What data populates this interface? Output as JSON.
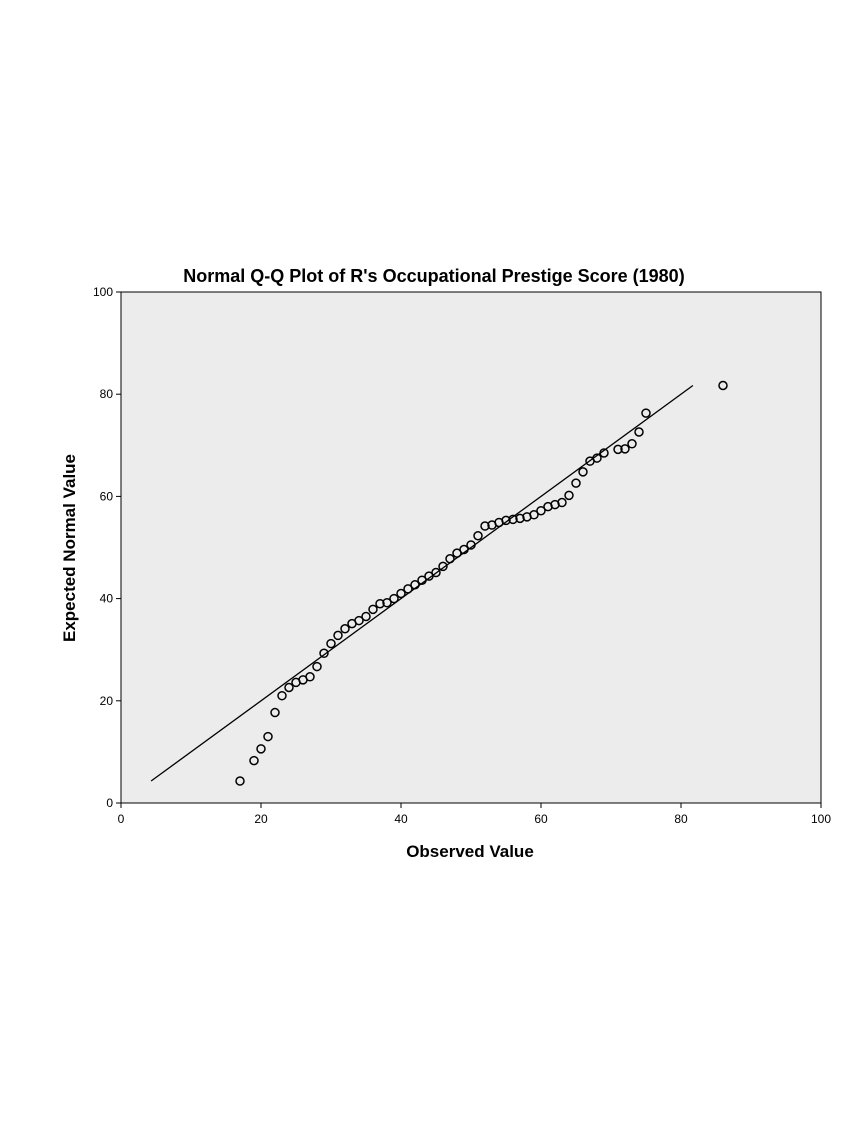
{
  "chart_data": {
    "type": "scatter",
    "title": "Normal Q-Q Plot of R's Occupational Prestige Score (1980)",
    "xlabel": "Observed Value",
    "ylabel": "Expected Normal Value",
    "xlim": [
      0,
      100
    ],
    "ylim": [
      0,
      100
    ],
    "xticks": [
      "0",
      "20",
      "40",
      "60",
      "80",
      "100"
    ],
    "yticks": [
      "0",
      "20",
      "40",
      "60",
      "80",
      "100"
    ],
    "grid": false,
    "legend": "none",
    "plot_background": "#ececec",
    "reference_line": {
      "x": [
        4.3,
        81.7
      ],
      "y": [
        4.3,
        81.7
      ]
    },
    "series": [
      {
        "marker": "open-circle",
        "points": [
          [
            17,
            4.3
          ],
          [
            19,
            8.3
          ],
          [
            20,
            10.6
          ],
          [
            21,
            13.0
          ],
          [
            22,
            17.7
          ],
          [
            23,
            21.0
          ],
          [
            24,
            22.6
          ],
          [
            25,
            23.6
          ],
          [
            26,
            24.1
          ],
          [
            27,
            24.7
          ],
          [
            28,
            26.7
          ],
          [
            29,
            29.3
          ],
          [
            30,
            31.2
          ],
          [
            31,
            32.8
          ],
          [
            32,
            34.1
          ],
          [
            33,
            35.1
          ],
          [
            34,
            35.7
          ],
          [
            35,
            36.5
          ],
          [
            36,
            37.9
          ],
          [
            37,
            39.0
          ],
          [
            38,
            39.2
          ],
          [
            39,
            40.0
          ],
          [
            40,
            41.0
          ],
          [
            41,
            41.9
          ],
          [
            42,
            42.7
          ],
          [
            43,
            43.6
          ],
          [
            44,
            44.4
          ],
          [
            45,
            45.1
          ],
          [
            46,
            46.3
          ],
          [
            47,
            47.8
          ],
          [
            48,
            48.9
          ],
          [
            49,
            49.6
          ],
          [
            50,
            50.5
          ],
          [
            51,
            52.3
          ],
          [
            52,
            54.2
          ],
          [
            53,
            54.4
          ],
          [
            54,
            54.9
          ],
          [
            55,
            55.3
          ],
          [
            56,
            55.5
          ],
          [
            57,
            55.7
          ],
          [
            58,
            56.0
          ],
          [
            59,
            56.4
          ],
          [
            60,
            57.2
          ],
          [
            61,
            58.0
          ],
          [
            62,
            58.4
          ],
          [
            63,
            58.8
          ],
          [
            64,
            60.2
          ],
          [
            65,
            62.6
          ],
          [
            66,
            64.8
          ],
          [
            67,
            66.9
          ],
          [
            68,
            67.5
          ],
          [
            69,
            68.5
          ],
          [
            71,
            69.2
          ],
          [
            72,
            69.3
          ],
          [
            73,
            70.3
          ],
          [
            74,
            72.6
          ],
          [
            75,
            76.3
          ],
          [
            86,
            81.7
          ]
        ]
      }
    ]
  }
}
